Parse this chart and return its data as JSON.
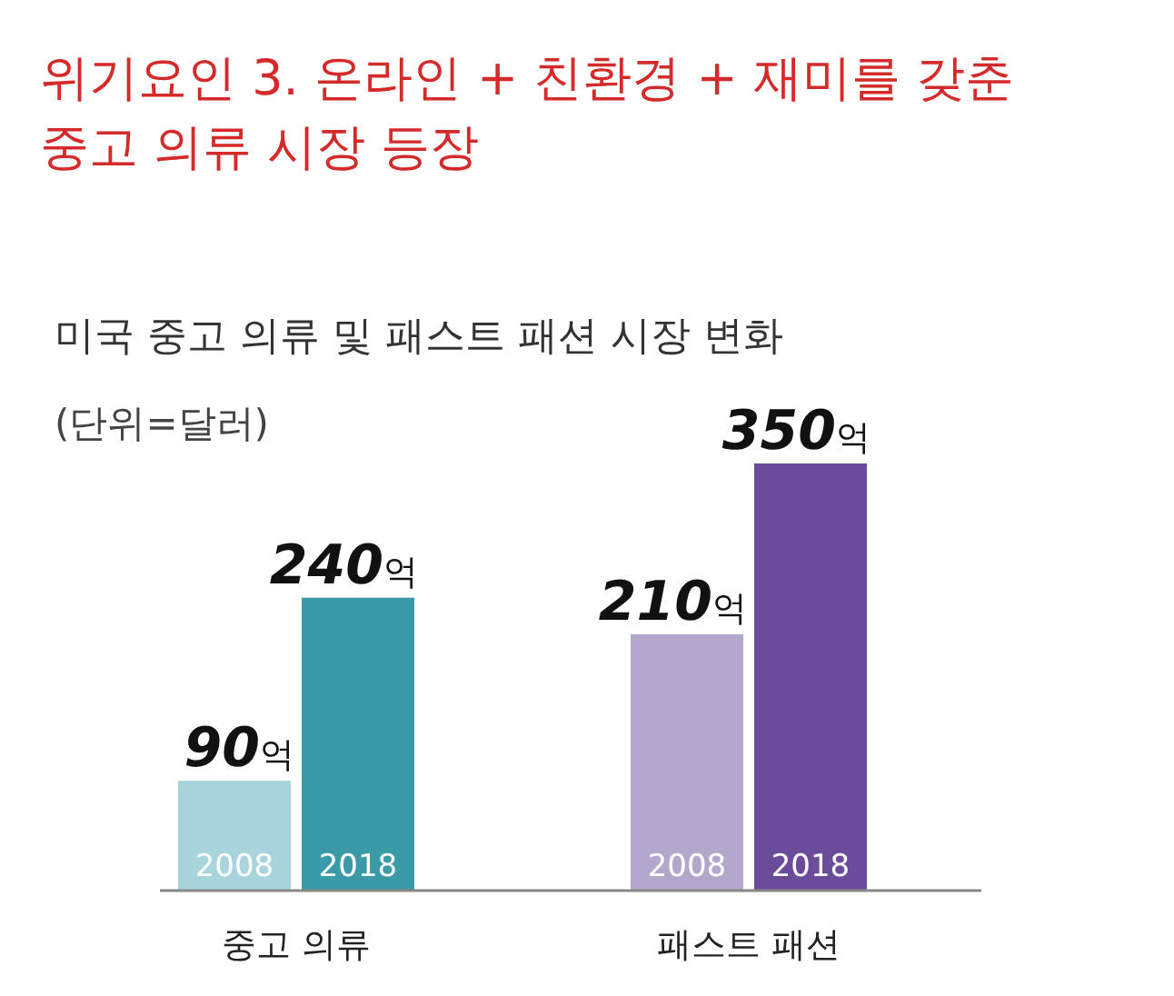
{
  "chart_data": {
    "type": "bar",
    "title": "위기요인 3. 온라인 + 친환경 + 재미를 갖춘 중고 의류 시장 등장",
    "subtitle": "미국 중고 의류 및 패스트 패션 시장 변화",
    "annotations": [
      "(단위=달러)"
    ],
    "categories": [
      "중고 의류",
      "패스트 패션"
    ],
    "series": [
      {
        "name": "2008",
        "colors": [
          "#a8d4dc",
          "#b3a8cc"
        ],
        "values": [
          90,
          210
        ],
        "value_labels": [
          "90억",
          "210억"
        ]
      },
      {
        "name": "2018",
        "colors": [
          "#3a9aa6",
          "#6a4c9a"
        ],
        "values": [
          240,
          350
        ],
        "value_labels": [
          "240억",
          "350억"
        ]
      }
    ],
    "legend": false
  }
}
